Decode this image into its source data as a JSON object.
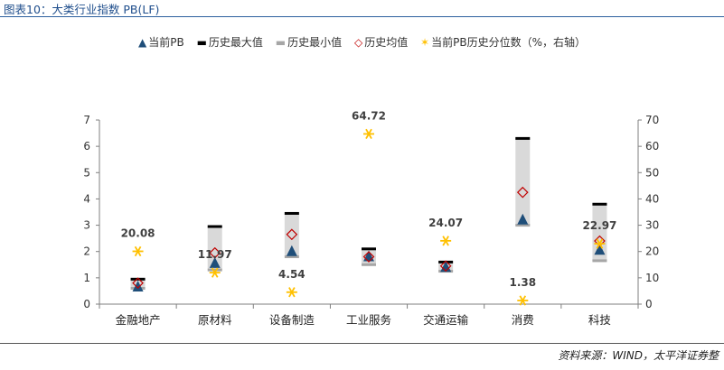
{
  "figure_title": "图表10：大类行业指数 PB(LF)",
  "source": "资料来源：WIND，太平洋证券整",
  "legend": [
    {
      "label": "当前PB",
      "symbol": "▲",
      "color": "#1f4e79"
    },
    {
      "label": "历史最大值",
      "symbol": "▬",
      "color": "#000000"
    },
    {
      "label": "历史最小值",
      "symbol": "▬",
      "color": "#a6a6a6"
    },
    {
      "label": "历史均值",
      "symbol": "◇",
      "color": "#c00000"
    },
    {
      "label": "当前PB历史分位数（%，右轴）",
      "symbol": "✶",
      "color": "#ffc000"
    }
  ],
  "chart_data": {
    "type": "scatter",
    "categories": [
      "金融地产",
      "原材料",
      "设备制造",
      "工业服务",
      "交通运输",
      "消费",
      "科技"
    ],
    "left_axis": {
      "min": 0,
      "max": 7,
      "ticks": [
        "0",
        "1",
        "2",
        "3",
        "4",
        "5",
        "6",
        "7"
      ]
    },
    "right_axis": {
      "min": 0,
      "max": 70,
      "ticks": [
        "0",
        "10",
        "20",
        "30",
        "40",
        "50",
        "60",
        "70"
      ]
    },
    "series": [
      {
        "name": "当前PB",
        "axis": "left",
        "values": [
          0.65,
          1.55,
          2.0,
          1.8,
          1.4,
          3.2,
          2.05
        ]
      },
      {
        "name": "历史最大值",
        "axis": "left",
        "values": [
          0.95,
          2.95,
          3.45,
          2.1,
          1.6,
          6.3,
          3.8
        ]
      },
      {
        "name": "历史最小值",
        "axis": "left",
        "values": [
          0.6,
          1.3,
          1.8,
          1.5,
          1.25,
          3.0,
          1.65
        ]
      },
      {
        "name": "历史均值",
        "axis": "left",
        "values": [
          0.8,
          1.95,
          2.65,
          1.8,
          1.45,
          4.25,
          2.4
        ]
      },
      {
        "name": "当前PB历史分位数（%，右轴）",
        "axis": "right",
        "values": [
          20.08,
          11.97,
          4.54,
          64.72,
          24.07,
          1.38,
          22.97
        ]
      }
    ],
    "data_labels": [
      "20.08",
      "11.97",
      "4.54",
      "64.72",
      "24.07",
      "1.38",
      "22.97"
    ],
    "colors": {
      "range_bar": "#d9d9d9",
      "current": "#1f4e79",
      "max": "#000000",
      "min": "#a6a6a6",
      "mean": "#c00000",
      "percentile": "#ffc000",
      "axis": "#7f7f7f"
    }
  }
}
